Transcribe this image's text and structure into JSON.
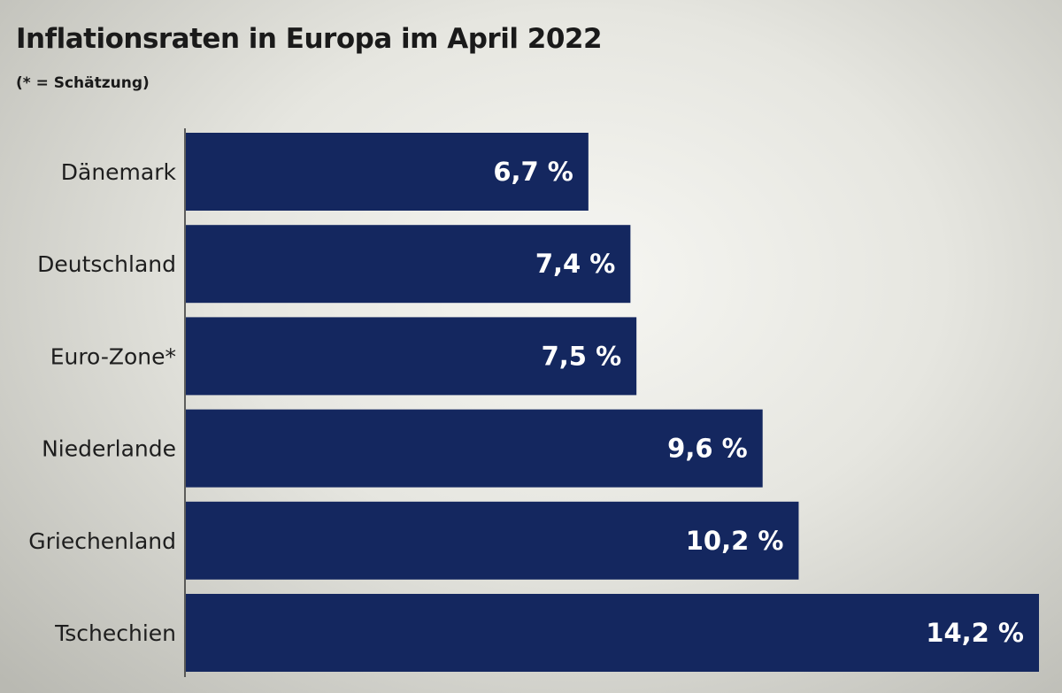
{
  "chart_data": {
    "type": "bar",
    "orientation": "horizontal",
    "title": "Inflationsraten in Europa im April 2022",
    "subtitle": "(* = Schätzung)",
    "categories": [
      "Dänemark",
      "Deutschland",
      "Euro-Zone*",
      "Niederlande",
      "Griechenland",
      "Tschechien"
    ],
    "values": [
      6.7,
      7.4,
      7.5,
      9.6,
      10.2,
      14.2
    ],
    "value_labels": [
      "6,7 %",
      "7,4 %",
      "7,5 %",
      "9,6 %",
      "10,2 %",
      "14,2 %"
    ],
    "xlabel": "",
    "ylabel": "",
    "xlim": [
      0,
      14.2
    ],
    "grid": false,
    "bar_color": "#14275f"
  }
}
